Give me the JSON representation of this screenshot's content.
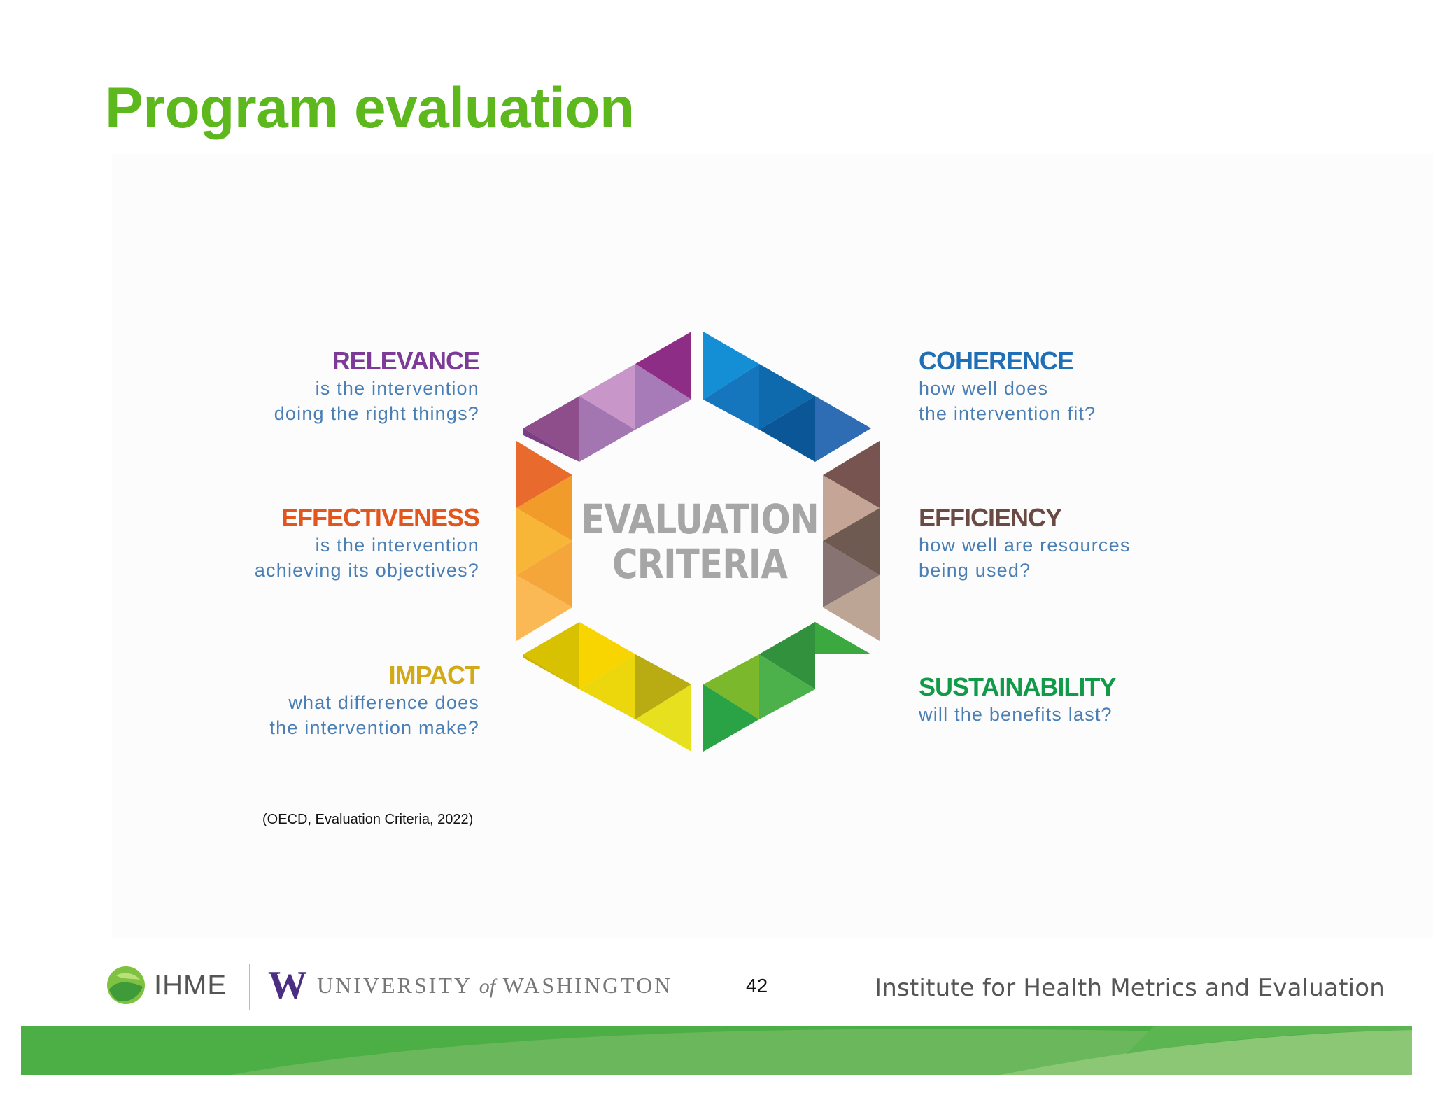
{
  "slide": {
    "title": "Program evaluation",
    "page_number": "42",
    "citation": "(OECD, Evaluation Criteria, 2022)"
  },
  "graphic": {
    "center_line1": "EVALUATION",
    "center_line2": "CRITERIA"
  },
  "criteria": {
    "relevance": {
      "title": "RELEVANCE",
      "line1": "is the intervention",
      "line2": "doing the right things?",
      "color": "#7b3b96"
    },
    "effectiveness": {
      "title": "EFFECTIVENESS",
      "line1": "is the intervention",
      "line2": "achieving its objectives?",
      "color": "#e2561d"
    },
    "impact": {
      "title": "IMPACT",
      "line1": "what difference does",
      "line2": "the intervention make?",
      "color": "#d2a917"
    },
    "coherence": {
      "title": "COHERENCE",
      "line1": "how well does",
      "line2": "the intervention fit?",
      "color": "#1f6fb7"
    },
    "efficiency": {
      "title": "EFFICIENCY",
      "line1": "how well are resources",
      "line2": "being used?",
      "color": "#6b4a45"
    },
    "sustainability": {
      "title": "SUSTAINABILITY",
      "line1": "will the benefits last?",
      "line2": "",
      "color": "#119a48"
    }
  },
  "footer": {
    "ihme_label": "IHME",
    "uw_letter": "W",
    "uw_part1": "UNIVERSITY",
    "uw_part2": "of",
    "uw_part3": "WASHINGTON",
    "institute_name": "Institute for Health Metrics and Evaluation"
  },
  "colors": {
    "title_green": "#5cb81c",
    "description_blue": "#4a7fb5",
    "center_gray": "#a6a6a6",
    "footer_green": "#4caf45"
  }
}
